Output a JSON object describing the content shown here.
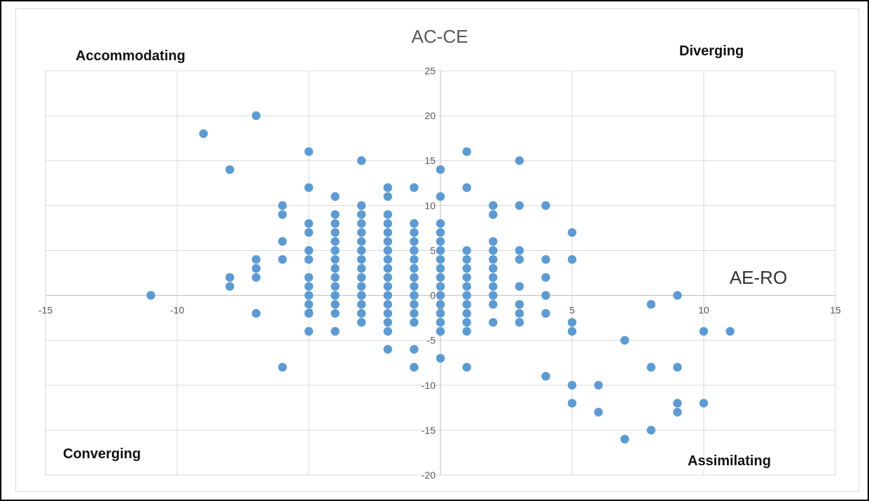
{
  "chart_data": {
    "type": "scatter",
    "ytitle": "AC-CE",
    "xtitle": "AE-RO",
    "xlim": [
      -15,
      15
    ],
    "ylim": [
      -20,
      25
    ],
    "xticks": [
      -15,
      -10,
      -5,
      0,
      5,
      10,
      15
    ],
    "yticks": [
      -20,
      -15,
      -10,
      -5,
      0,
      5,
      10,
      15,
      20,
      25
    ],
    "x_tick_labels": [
      "-15",
      "-10",
      "-5",
      "0",
      "5",
      "10",
      "15"
    ],
    "y_tick_labels": [
      "-20",
      "-15",
      "-10",
      "-5",
      "0",
      "5",
      "10",
      "15",
      "20",
      "25"
    ],
    "grid": true,
    "point_color": "#5b9bd5",
    "quadrant_labels": {
      "top_left": "Accommodating",
      "top_right": "Diverging",
      "bottom_left": "Converging",
      "bottom_right": "Assimilating"
    },
    "points": [
      [
        -11,
        0
      ],
      [
        -9,
        18
      ],
      [
        -8,
        14
      ],
      [
        -8,
        2
      ],
      [
        -8,
        1
      ],
      [
        -7,
        20
      ],
      [
        -7,
        4
      ],
      [
        -7,
        3
      ],
      [
        -7,
        2
      ],
      [
        -7,
        -2
      ],
      [
        -6,
        10
      ],
      [
        -6,
        9
      ],
      [
        -6,
        6
      ],
      [
        -6,
        4
      ],
      [
        -6,
        -8
      ],
      [
        -5,
        16
      ],
      [
        -5,
        12
      ],
      [
        -5,
        8
      ],
      [
        -5,
        7
      ],
      [
        -5,
        5
      ],
      [
        -5,
        4
      ],
      [
        -5,
        2
      ],
      [
        -5,
        1
      ],
      [
        -5,
        0
      ],
      [
        -5,
        -1
      ],
      [
        -5,
        -2
      ],
      [
        -5,
        -4
      ],
      [
        -4,
        11
      ],
      [
        -4,
        9
      ],
      [
        -4,
        8
      ],
      [
        -4,
        7
      ],
      [
        -4,
        6
      ],
      [
        -4,
        5
      ],
      [
        -4,
        4
      ],
      [
        -4,
        3
      ],
      [
        -4,
        2
      ],
      [
        -4,
        1
      ],
      [
        -4,
        0
      ],
      [
        -4,
        -1
      ],
      [
        -4,
        -2
      ],
      [
        -4,
        -4
      ],
      [
        -3,
        15
      ],
      [
        -3,
        10
      ],
      [
        -3,
        9
      ],
      [
        -3,
        8
      ],
      [
        -3,
        7
      ],
      [
        -3,
        6
      ],
      [
        -3,
        5
      ],
      [
        -3,
        4
      ],
      [
        -3,
        3
      ],
      [
        -3,
        2
      ],
      [
        -3,
        1
      ],
      [
        -3,
        0
      ],
      [
        -3,
        -1
      ],
      [
        -3,
        -2
      ],
      [
        -3,
        -3
      ],
      [
        -2,
        12
      ],
      [
        -2,
        11
      ],
      [
        -2,
        9
      ],
      [
        -2,
        8
      ],
      [
        -2,
        7
      ],
      [
        -2,
        6
      ],
      [
        -2,
        5
      ],
      [
        -2,
        4
      ],
      [
        -2,
        3
      ],
      [
        -2,
        2
      ],
      [
        -2,
        1
      ],
      [
        -2,
        0
      ],
      [
        -2,
        -1
      ],
      [
        -2,
        -2
      ],
      [
        -2,
        -3
      ],
      [
        -2,
        -4
      ],
      [
        -2,
        -6
      ],
      [
        -1,
        12
      ],
      [
        -1,
        8
      ],
      [
        -1,
        7
      ],
      [
        -1,
        6
      ],
      [
        -1,
        5
      ],
      [
        -1,
        4
      ],
      [
        -1,
        3
      ],
      [
        -1,
        2
      ],
      [
        -1,
        1
      ],
      [
        -1,
        0
      ],
      [
        -1,
        -1
      ],
      [
        -1,
        -2
      ],
      [
        -1,
        -3
      ],
      [
        -1,
        -6
      ],
      [
        -1,
        -8
      ],
      [
        0,
        14
      ],
      [
        0,
        11
      ],
      [
        0,
        8
      ],
      [
        0,
        7
      ],
      [
        0,
        6
      ],
      [
        0,
        5
      ],
      [
        0,
        4
      ],
      [
        0,
        3
      ],
      [
        0,
        2
      ],
      [
        0,
        1
      ],
      [
        0,
        0
      ],
      [
        0,
        -1
      ],
      [
        0,
        -2
      ],
      [
        0,
        -3
      ],
      [
        0,
        -4
      ],
      [
        0,
        -7
      ],
      [
        1,
        16
      ],
      [
        1,
        12
      ],
      [
        1,
        5
      ],
      [
        1,
        4
      ],
      [
        1,
        3
      ],
      [
        1,
        2
      ],
      [
        1,
        1
      ],
      [
        1,
        0
      ],
      [
        1,
        -1
      ],
      [
        1,
        -2
      ],
      [
        1,
        -3
      ],
      [
        1,
        -4
      ],
      [
        1,
        -8
      ],
      [
        2,
        10
      ],
      [
        2,
        9
      ],
      [
        2,
        6
      ],
      [
        2,
        5
      ],
      [
        2,
        4
      ],
      [
        2,
        3
      ],
      [
        2,
        2
      ],
      [
        2,
        1
      ],
      [
        2,
        0
      ],
      [
        2,
        -1
      ],
      [
        2,
        -3
      ],
      [
        3,
        15
      ],
      [
        3,
        10
      ],
      [
        3,
        5
      ],
      [
        3,
        4
      ],
      [
        3,
        1
      ],
      [
        3,
        -1
      ],
      [
        3,
        -2
      ],
      [
        3,
        -3
      ],
      [
        4,
        10
      ],
      [
        4,
        4
      ],
      [
        4,
        2
      ],
      [
        4,
        0
      ],
      [
        4,
        -2
      ],
      [
        4,
        -9
      ],
      [
        5,
        7
      ],
      [
        5,
        4
      ],
      [
        5,
        -3
      ],
      [
        5,
        -4
      ],
      [
        5,
        -10
      ],
      [
        5,
        -12
      ],
      [
        6,
        -10
      ],
      [
        6,
        -13
      ],
      [
        7,
        -5
      ],
      [
        7,
        -16
      ],
      [
        8,
        -1
      ],
      [
        8,
        -8
      ],
      [
        8,
        -15
      ],
      [
        9,
        0
      ],
      [
        9,
        -8
      ],
      [
        9,
        -12
      ],
      [
        9,
        -13
      ],
      [
        10,
        -4
      ],
      [
        10,
        -12
      ],
      [
        11,
        -4
      ]
    ]
  }
}
